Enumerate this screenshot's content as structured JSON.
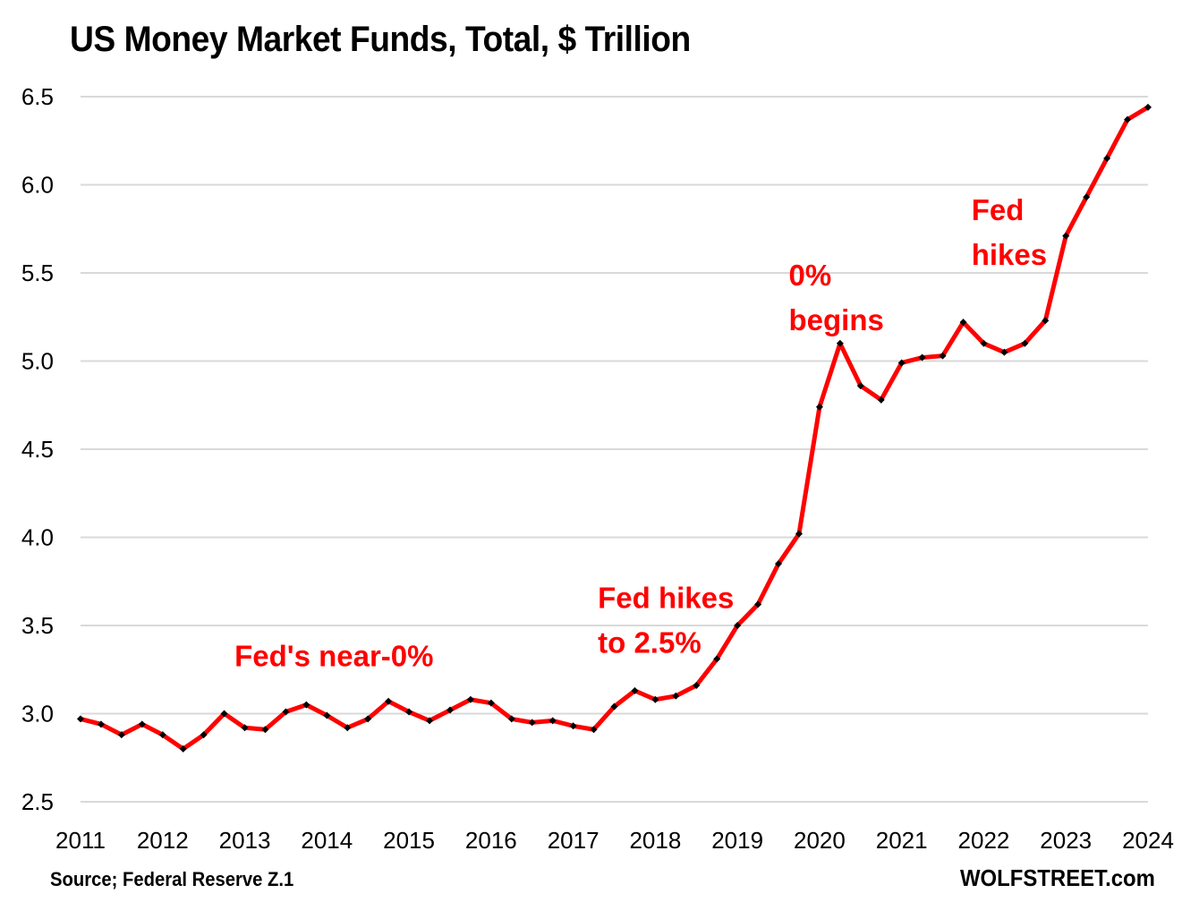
{
  "chart_data": {
    "type": "line",
    "title": "US Money Market Funds, Total, $ Trillion",
    "xlabel": "",
    "ylabel": "",
    "ylim": [
      2.5,
      6.5
    ],
    "yticks": [
      "2.5",
      "3.0",
      "3.5",
      "4.0",
      "4.5",
      "5.0",
      "5.5",
      "6.0",
      "6.5"
    ],
    "ytick_values": [
      2.5,
      3.0,
      3.5,
      4.0,
      4.5,
      5.0,
      5.5,
      6.0,
      6.5
    ],
    "xticks": [
      "2011",
      "2012",
      "2013",
      "2014",
      "2015",
      "2016",
      "2017",
      "2018",
      "2019",
      "2020",
      "2021",
      "2022",
      "2023",
      "2024"
    ],
    "grid": true,
    "legend": "none",
    "series": [
      {
        "name": "US Money Market Funds",
        "color": "#ff0000",
        "marker_color": "#000000",
        "frequency": "quarterly",
        "start": "2011",
        "values": [
          2.97,
          2.94,
          2.88,
          2.94,
          2.88,
          2.8,
          2.88,
          3.0,
          2.92,
          2.91,
          3.01,
          3.05,
          2.99,
          2.92,
          2.97,
          3.07,
          3.01,
          2.96,
          3.02,
          3.08,
          3.06,
          2.97,
          2.95,
          2.96,
          2.93,
          2.91,
          3.04,
          3.13,
          3.08,
          3.1,
          3.16,
          3.31,
          3.5,
          3.62,
          3.85,
          4.02,
          4.74,
          5.1,
          4.86,
          4.78,
          4.99,
          5.02,
          5.03,
          5.22,
          5.1,
          5.05,
          5.1,
          5.23,
          5.71,
          5.93,
          6.15,
          6.37,
          6.44
        ]
      }
    ],
    "annotations": [
      {
        "lines": [
          "Fed's near-0%"
        ],
        "x_index": 7.5,
        "y": 3.27
      },
      {
        "lines": [
          "Fed hikes",
          "to 2.5%"
        ],
        "x_index": 25.2,
        "y": 3.6
      },
      {
        "lines": [
          "0%",
          "begins"
        ],
        "x_index": 34.5,
        "y": 5.43
      },
      {
        "lines": [
          "Fed",
          "hikes"
        ],
        "x_index": 43.4,
        "y": 5.8
      }
    ]
  },
  "footer": {
    "source": "Source; Federal Reserve Z.1",
    "watermark": "WOLFSTREET.com"
  }
}
